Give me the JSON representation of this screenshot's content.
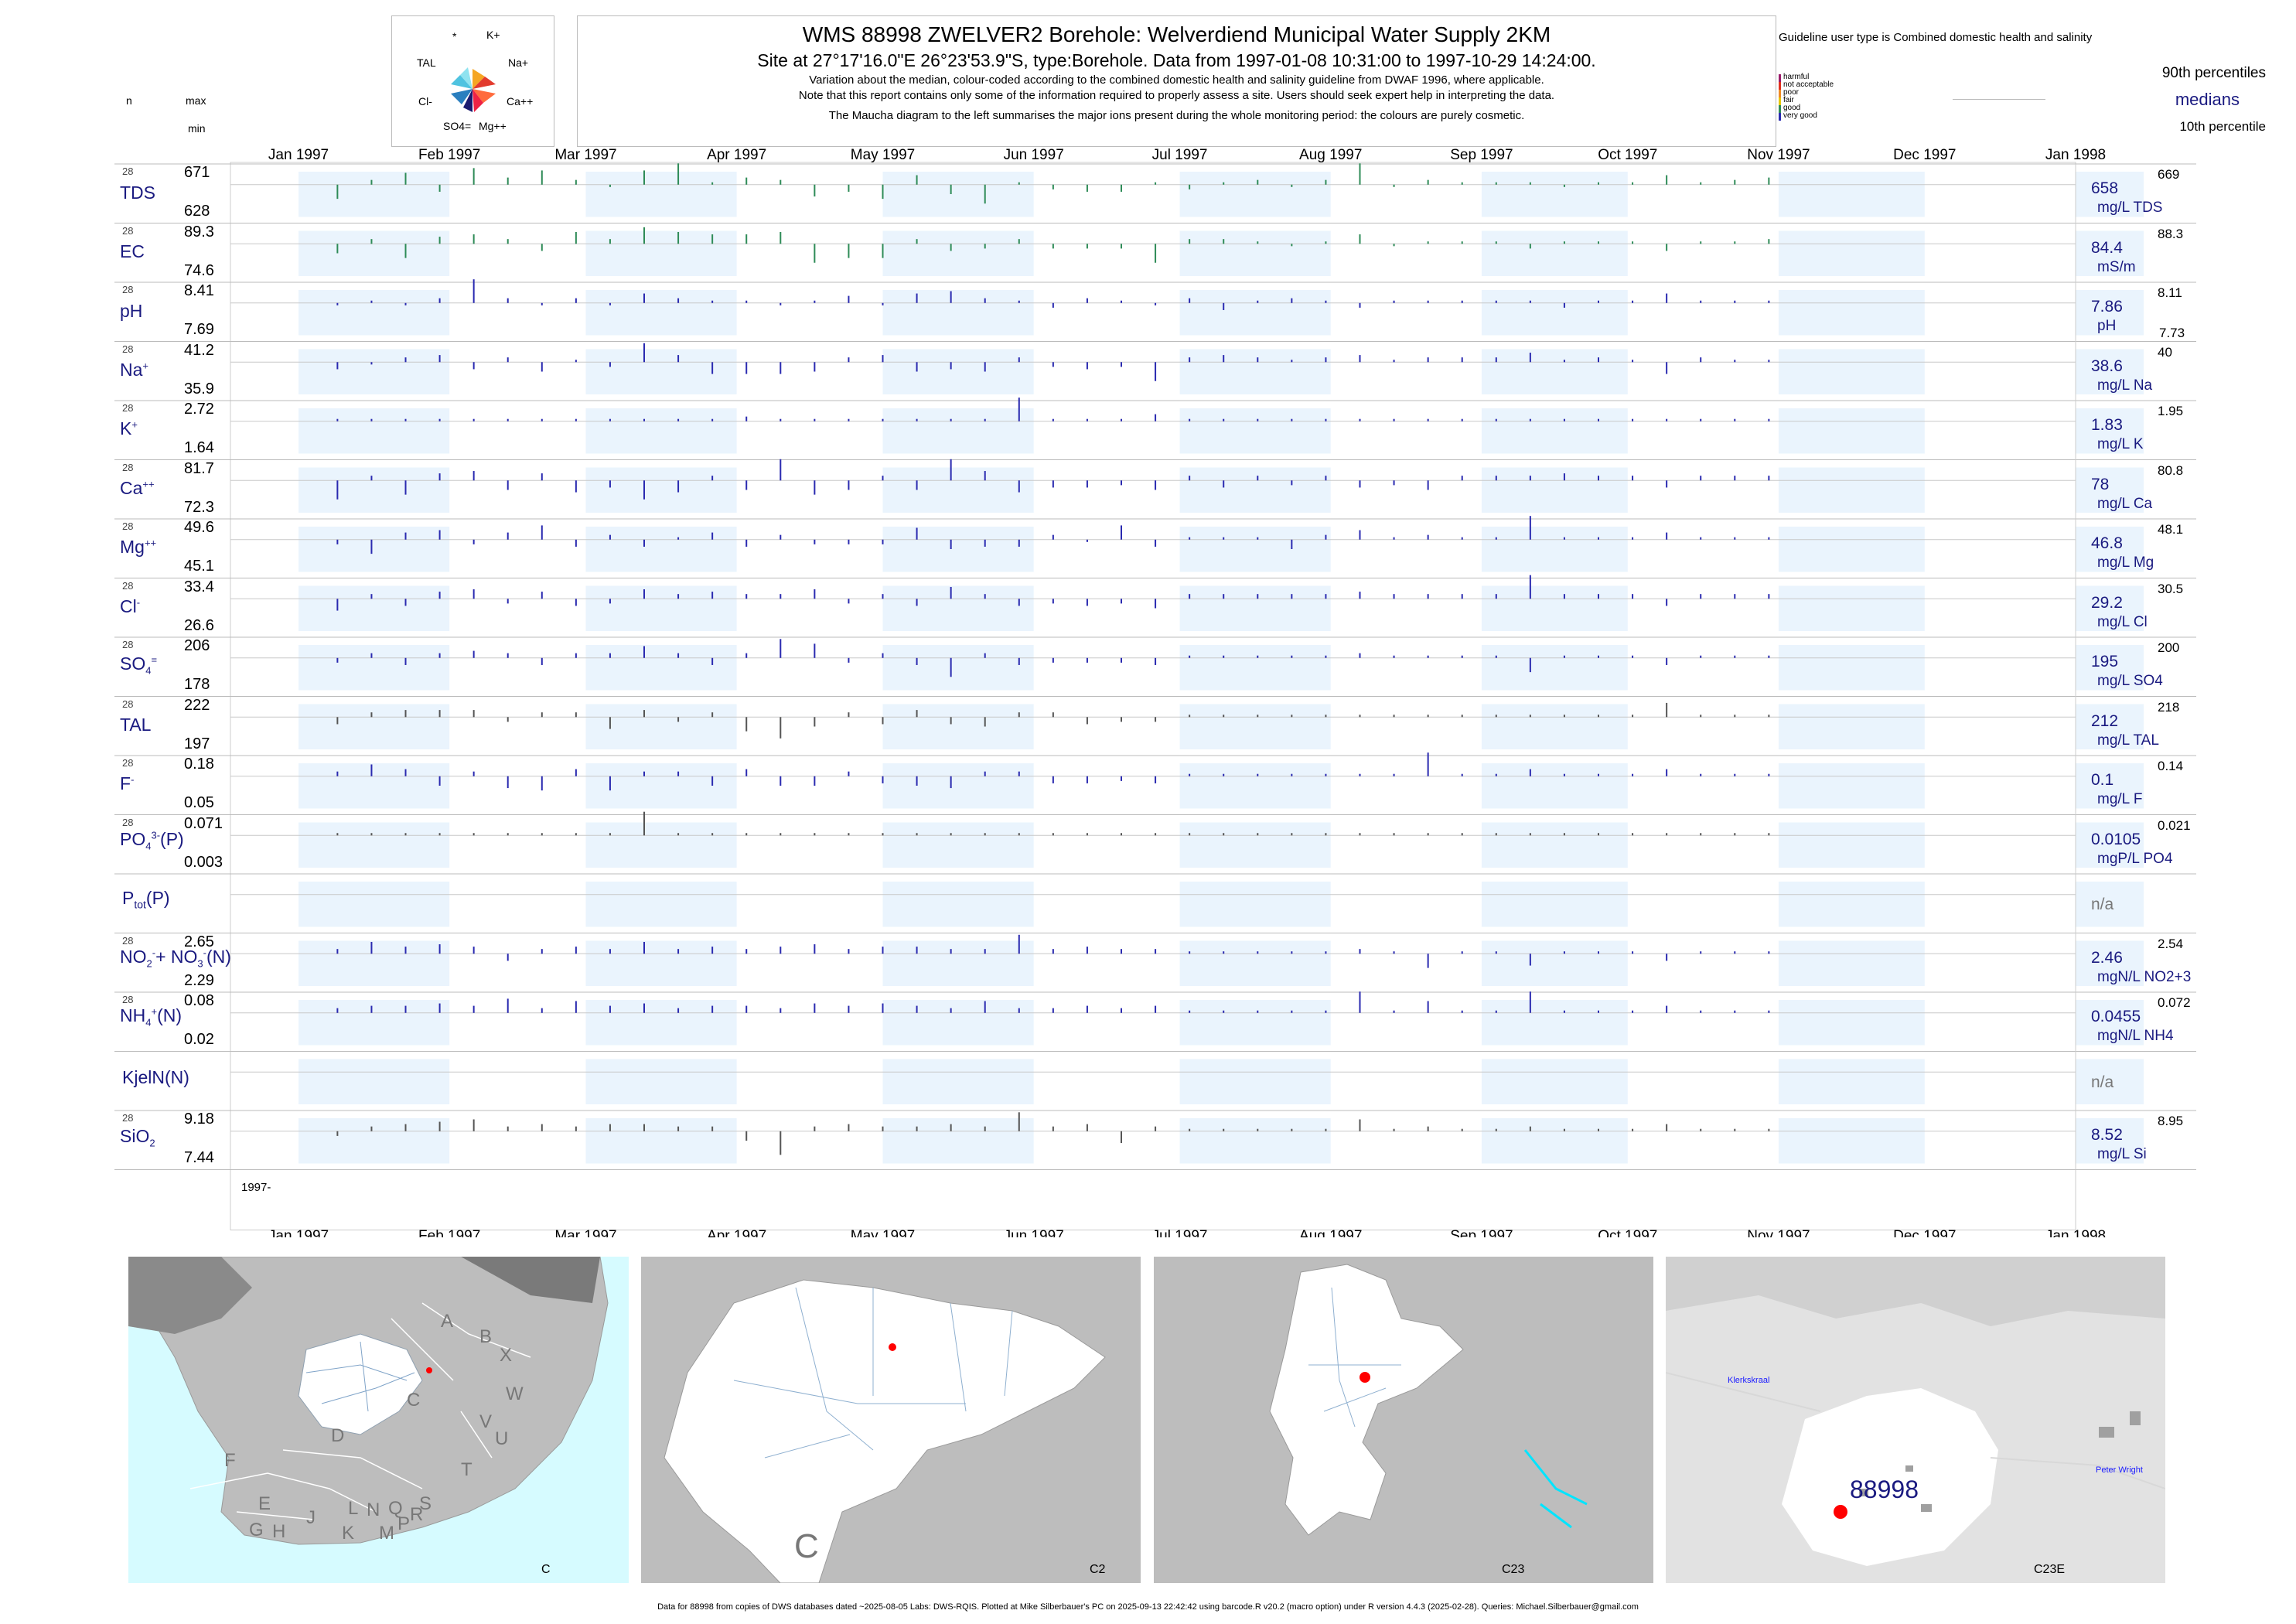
{
  "header": {
    "title": "WMS 88998  ZWELVER2 Borehole: Welverdiend Municipal Water Supply 2KM",
    "subtitle": "Site at 27°17'16.0\"E 26°23'53.9\"S, type:Borehole.  Data from 1997-01-08 10:31:00 to 1997-10-29 14:24:00.",
    "note1": "Variation about the median,  colour-coded according to the combined domestic health and salinity guideline from DWAF 1996, where applicable.",
    "note2": "Note that this report contains only some of the information required to properly assess a site. Users should seek expert help in interpreting the data.",
    "note3": "The Maucha diagram to the left summarises the major ions present during the whole monitoring period: the colours are purely cosmetic."
  },
  "maucha": {
    "labels": [
      "*",
      "K+",
      "TAL",
      "Na+",
      "Cl-",
      "Ca++",
      "SO4=",
      "Mg++"
    ]
  },
  "guideline": {
    "title": "Guideline user type is Combined domestic health and salinity",
    "categories": [
      {
        "label": "harmful",
        "color": "#9b1b6a"
      },
      {
        "label": "not acceptable",
        "color": "#e0301e"
      },
      {
        "label": "poor",
        "color": "#f08a24"
      },
      {
        "label": "fair",
        "color": "#e6c700"
      },
      {
        "label": "good",
        "color": "#2e8b57"
      },
      {
        "label": "very good",
        "color": "#2a2ab0"
      }
    ],
    "p90_label": "90th percentiles",
    "median_label": "medians",
    "p10_label": "10th percentile"
  },
  "left_header": {
    "n": "n",
    "max": "max",
    "min": "min"
  },
  "months_top": [
    "Jan 1997",
    "Feb 1997",
    "Mar 1997",
    "Apr 1997",
    "May 1997",
    "Jun 1997",
    "Jul 1997",
    "Aug 1997",
    "Sep 1997",
    "Oct 1997",
    "Nov 1997",
    "Dec 1997",
    "Jan 1998"
  ],
  "year_label": "1997-",
  "chart_data": {
    "type": "bar",
    "x_range": [
      "1997-01-01",
      "1998-01-01"
    ],
    "variables": [
      {
        "name": "TDS",
        "n": "28",
        "max": "671",
        "min": "628",
        "median": "658",
        "p90": "669",
        "unit": "mg/L TDS",
        "color": "#2e8b57"
      },
      {
        "name": "EC",
        "n": "28",
        "max": "89.3",
        "min": "74.6",
        "median": "84.4",
        "p90": "88.3",
        "unit": "mS/m",
        "color": "#2e8b57"
      },
      {
        "name": "pH",
        "n": "28",
        "max": "8.41",
        "min": "7.69",
        "median": "7.86",
        "p90": "8.11",
        "p10": "7.73",
        "unit": "pH",
        "color": "#2a2ab0"
      },
      {
        "name": "Na+",
        "n": "28",
        "max": "41.2",
        "min": "35.9",
        "median": "38.6",
        "p90": "40",
        "unit": "mg/L Na",
        "color": "#2a2ab0"
      },
      {
        "name": "K+",
        "n": "28",
        "max": "2.72",
        "min": "1.64",
        "median": "1.83",
        "p90": "1.95",
        "unit": "mg/L K",
        "color": "#2a2ab0"
      },
      {
        "name": "Ca++",
        "n": "28",
        "max": "81.7",
        "min": "72.3",
        "median": "78",
        "p90": "80.8",
        "unit": "mg/L Ca",
        "color": "#2a2ab0"
      },
      {
        "name": "Mg++",
        "n": "28",
        "max": "49.6",
        "min": "45.1",
        "median": "46.8",
        "p90": "48.1",
        "unit": "mg/L Mg",
        "color": "#2a2ab0"
      },
      {
        "name": "Cl-",
        "n": "28",
        "max": "33.4",
        "min": "26.6",
        "median": "29.2",
        "p90": "30.5",
        "unit": "mg/L Cl",
        "color": "#2a2ab0"
      },
      {
        "name": "SO4=",
        "n": "28",
        "max": "206",
        "min": "178",
        "median": "195",
        "p90": "200",
        "unit": "mg/L SO4",
        "color": "#2a2ab0"
      },
      {
        "name": "TAL",
        "n": "28",
        "max": "222",
        "min": "197",
        "median": "212",
        "p90": "218",
        "unit": "mg/L TAL",
        "color": "#555555"
      },
      {
        "name": "F-",
        "n": "28",
        "max": "0.18",
        "min": "0.05",
        "median": "0.1",
        "p90": "0.14",
        "unit": "mg/L F",
        "color": "#2a2ab0"
      },
      {
        "name": "PO4(P)",
        "n": "28",
        "max": "0.071",
        "min": "0.003",
        "median": "0.0105",
        "p90": "0.021",
        "unit": "mgP/L PO4",
        "color": "#555555"
      },
      {
        "name": "Ptot(P)",
        "n": "",
        "max": "",
        "min": "",
        "median": "n/a",
        "p90": "",
        "unit": "",
        "color": "#555555"
      },
      {
        "name": "NO2+NO3(N)",
        "n": "28",
        "max": "2.65",
        "min": "2.29",
        "median": "2.46",
        "p90": "2.54",
        "unit": "mgN/L NO2+3",
        "color": "#2a2ab0"
      },
      {
        "name": "NH4(N)",
        "n": "28",
        "max": "0.08",
        "min": "0.02",
        "median": "0.0455",
        "p90": "0.072",
        "unit": "mgN/L NH4",
        "color": "#2a2ab0"
      },
      {
        "name": "KjelN(N)",
        "n": "",
        "max": "",
        "min": "",
        "median": "n/a",
        "p90": "",
        "unit": "",
        "color": "#555555"
      },
      {
        "name": "SiO2",
        "n": "28",
        "max": "9.18",
        "min": "7.44",
        "median": "8.52",
        "p90": "8.95",
        "unit": "mg/L Si",
        "color": "#555555"
      }
    ],
    "sample_days": [
      8,
      15,
      22,
      29,
      36,
      43,
      50,
      57,
      64,
      71,
      78,
      85,
      92,
      99,
      106,
      113,
      120,
      127,
      134,
      141,
      148,
      155,
      162,
      169,
      176,
      183,
      190,
      197,
      204,
      211,
      218,
      225,
      232,
      239,
      246,
      253,
      260,
      267,
      274,
      281,
      288,
      295,
      302
    ],
    "deviations": [
      [
        -0.6,
        0.2,
        0.5,
        -0.3,
        0.7,
        0.3,
        0.6,
        0.2,
        -0.1,
        0.6,
        0.9,
        0.1,
        0.3,
        0.2,
        -0.5,
        -0.3,
        -0.6,
        0.4,
        -0.4,
        -0.8,
        0.1,
        -0.2,
        -0.3,
        -0.3,
        0.1,
        -0.2,
        0.1,
        0.2,
        -0.1,
        0.2,
        0.9,
        -0.1,
        0.2,
        0.1,
        0.1,
        0.1,
        -0.1,
        0.1,
        0.1,
        0.4,
        0.1,
        0.2,
        0.3
      ],
      [
        -0.4,
        0.2,
        -0.6,
        0.3,
        0.4,
        0.2,
        -0.3,
        0.5,
        0.2,
        0.7,
        0.5,
        0.4,
        0.4,
        0.5,
        -0.8,
        -0.6,
        -0.6,
        0.2,
        -0.3,
        -0.2,
        0.2,
        -0.2,
        -0.2,
        -0.2,
        -0.8,
        0.2,
        0.2,
        0.1,
        -0.1,
        0.1,
        0.4,
        -0.1,
        0.1,
        0.1,
        0.1,
        -0.2,
        0.1,
        0.1,
        0.1,
        -0.3,
        0.1,
        0.1,
        0.2
      ],
      [
        -0.1,
        0.1,
        -0.1,
        0.2,
        1.0,
        0.2,
        -0.1,
        0.2,
        -0.1,
        0.4,
        0.2,
        0.1,
        0.1,
        -0.1,
        0.1,
        0.3,
        -0.1,
        0.4,
        0.5,
        0.2,
        0.1,
        -0.2,
        0.2,
        0.1,
        -0.1,
        0.2,
        -0.3,
        0.1,
        0.2,
        0.1,
        -0.2,
        0.1,
        0.1,
        0.1,
        0.1,
        0.1,
        -0.2,
        0.1,
        0.1,
        0.4,
        0.1,
        0.1,
        0.1
      ],
      [
        -0.3,
        -0.1,
        0.2,
        0.3,
        -0.3,
        0.2,
        -0.4,
        0.1,
        -0.2,
        0.8,
        0.3,
        -0.5,
        -0.5,
        -0.5,
        -0.4,
        0.2,
        0.3,
        -0.4,
        -0.3,
        -0.4,
        0.2,
        -0.2,
        -0.3,
        -0.2,
        -0.8,
        0.2,
        0.3,
        0.2,
        0.1,
        0.2,
        0.3,
        0.1,
        0.2,
        0.2,
        0.2,
        0.4,
        0.1,
        0.2,
        0.1,
        -0.5,
        0.2,
        0.1,
        0.1
      ],
      [
        0.1,
        0.1,
        0.1,
        0.1,
        0.1,
        0.1,
        0.1,
        0.1,
        0.1,
        0.1,
        0.1,
        0.1,
        0.2,
        0.1,
        0.1,
        0.1,
        0.1,
        0.1,
        0.1,
        0.1,
        1.0,
        0.1,
        0.1,
        0.1,
        0.3,
        0.1,
        0.1,
        0.1,
        0.1,
        0.1,
        0.1,
        0.1,
        0.1,
        0.1,
        0.1,
        0.1,
        0.1,
        0.1,
        0.1,
        0.1,
        0.1,
        0.1,
        0.1
      ],
      [
        -0.8,
        0.2,
        -0.6,
        0.3,
        0.4,
        -0.4,
        0.3,
        -0.5,
        -0.3,
        -0.8,
        -0.5,
        0.2,
        -0.4,
        0.9,
        -0.6,
        -0.4,
        0.2,
        -0.4,
        0.9,
        0.4,
        -0.5,
        -0.3,
        -0.3,
        -0.2,
        -0.4,
        0.2,
        -0.3,
        0.2,
        -0.2,
        0.2,
        -0.3,
        -0.2,
        -0.4,
        0.2,
        0.2,
        0.2,
        0.3,
        0.2,
        0.2,
        -0.3,
        0.2,
        0.2,
        0.2
      ],
      [
        -0.2,
        -0.6,
        0.3,
        0.4,
        -0.2,
        0.3,
        0.6,
        -0.3,
        0.2,
        -0.3,
        0.1,
        0.3,
        -0.3,
        0.2,
        -0.2,
        -0.2,
        -0.2,
        0.5,
        -0.4,
        -0.3,
        -0.3,
        0.2,
        -0.1,
        0.6,
        -0.3,
        0.1,
        0.1,
        0.1,
        -0.4,
        0.2,
        0.4,
        0.1,
        0.2,
        0.1,
        0.1,
        1.0,
        0.1,
        0.1,
        0.1,
        0.3,
        0.1,
        0.1,
        0.1
      ],
      [
        -0.5,
        0.2,
        -0.3,
        0.3,
        0.4,
        -0.2,
        0.3,
        -0.3,
        -0.2,
        0.4,
        0.2,
        0.3,
        0.2,
        0.2,
        0.4,
        -0.2,
        0.2,
        -0.3,
        0.5,
        0.2,
        -0.3,
        -0.2,
        -0.3,
        -0.2,
        -0.4,
        0.2,
        0.2,
        0.2,
        0.2,
        0.2,
        0.3,
        0.2,
        0.2,
        0.2,
        0.2,
        1.0,
        0.2,
        0.2,
        0.2,
        -0.3,
        0.2,
        0.2,
        0.2
      ],
      [
        -0.2,
        0.2,
        -0.3,
        0.2,
        0.3,
        0.2,
        -0.3,
        0.2,
        0.2,
        0.5,
        0.2,
        -0.3,
        0.2,
        0.8,
        0.6,
        -0.2,
        0.2,
        -0.3,
        -0.8,
        0.2,
        -0.3,
        -0.2,
        -0.2,
        -0.2,
        -0.3,
        0.1,
        0.1,
        0.1,
        0.1,
        0.1,
        0.2,
        0.1,
        0.1,
        0.1,
        0.1,
        -0.6,
        0.1,
        0.1,
        0.1,
        -0.3,
        0.1,
        0.1,
        0.1
      ],
      [
        -0.3,
        0.2,
        0.3,
        0.3,
        0.3,
        -0.2,
        0.2,
        0.2,
        -0.5,
        0.3,
        -0.2,
        0.2,
        -0.6,
        -0.9,
        -0.4,
        0.2,
        -0.3,
        0.3,
        -0.3,
        -0.4,
        0.2,
        0.2,
        -0.3,
        -0.2,
        -0.2,
        0.1,
        0.1,
        0.1,
        0.1,
        0.1,
        0.1,
        0.1,
        0.1,
        0.1,
        0.1,
        0.1,
        0.1,
        0.1,
        0.1,
        0.6,
        0.1,
        0.1,
        0.1
      ],
      [
        0.2,
        0.5,
        0.3,
        -0.4,
        0.2,
        -0.5,
        -0.6,
        0.3,
        -0.6,
        0.2,
        0.2,
        -0.4,
        0.3,
        -0.4,
        -0.4,
        0.2,
        -0.3,
        -0.4,
        -0.5,
        0.2,
        0.2,
        -0.3,
        -0.3,
        -0.2,
        -0.3,
        0.1,
        0.1,
        0.1,
        0.1,
        0.1,
        0.1,
        0.1,
        1.0,
        0.1,
        0.1,
        0.3,
        0.1,
        0.1,
        0.1,
        0.3,
        0.1,
        0.1,
        0.1
      ],
      [
        0.1,
        0.1,
        0.1,
        0.1,
        0.1,
        0.1,
        0.1,
        0.1,
        0.1,
        1.0,
        0.1,
        0.1,
        0.1,
        0.1,
        0.1,
        0.1,
        0.1,
        0.1,
        0.1,
        0.1,
        0.1,
        0.1,
        0.1,
        0.1,
        0.1,
        0.1,
        0.1,
        0.1,
        0.1,
        0.1,
        0.1,
        0.1,
        0.1,
        0.1,
        0.1,
        0.1,
        0.1,
        0.1,
        0.1,
        0.1,
        0.1,
        0.1,
        0.1
      ],
      [],
      [
        0.2,
        0.5,
        0.3,
        0.4,
        0.3,
        -0.3,
        0.2,
        0.3,
        0.2,
        0.5,
        0.2,
        0.3,
        0.2,
        0.3,
        0.4,
        0.2,
        0.3,
        0.3,
        0.2,
        0.2,
        0.8,
        0.2,
        0.3,
        0.2,
        0.2,
        0.1,
        0.1,
        0.1,
        0.1,
        0.1,
        0.2,
        0.1,
        -0.6,
        0.1,
        0.1,
        -0.5,
        0.1,
        0.1,
        0.1,
        -0.3,
        0.1,
        0.1,
        0.1
      ],
      [
        0.2,
        0.3,
        0.3,
        0.4,
        0.3,
        0.6,
        0.2,
        0.5,
        0.3,
        0.4,
        0.2,
        0.3,
        0.3,
        0.2,
        0.4,
        0.3,
        0.4,
        0.3,
        0.2,
        0.5,
        0.2,
        0.2,
        0.3,
        0.2,
        0.3,
        0.1,
        0.1,
        0.1,
        0.1,
        0.1,
        0.9,
        0.1,
        0.5,
        0.1,
        0.1,
        0.9,
        0.1,
        0.1,
        0.1,
        0.3,
        0.1,
        0.1,
        0.1
      ],
      [],
      [
        -0.2,
        0.2,
        0.3,
        0.4,
        0.5,
        0.2,
        0.3,
        0.2,
        0.3,
        0.3,
        0.2,
        0.2,
        -0.4,
        -1.0,
        0.2,
        0.3,
        0.2,
        0.2,
        0.3,
        0.2,
        0.8,
        0.2,
        0.3,
        -0.5,
        0.2,
        0.1,
        0.1,
        0.1,
        0.1,
        0.1,
        0.5,
        0.1,
        0.2,
        0.1,
        0.1,
        0.2,
        0.1,
        0.1,
        0.1,
        0.3,
        0.1,
        0.1,
        0.1
      ]
    ]
  },
  "maps": [
    {
      "label": "C",
      "letters": [
        "A",
        "B",
        "X",
        "W",
        "C",
        "V",
        "U",
        "T",
        "D",
        "F",
        "E",
        "G",
        "H",
        "J",
        "K",
        "L",
        "M",
        "N",
        "P",
        "Q",
        "R",
        "S"
      ]
    },
    {
      "label": "C2",
      "big_letter": "C"
    },
    {
      "label": "C23"
    },
    {
      "label": "C23E",
      "site": "88998",
      "towns": [
        "Klerkskraal",
        "Peter Wright"
      ]
    }
  ],
  "footer": "Data for 88998 from copies of DWS databases dated ~2025-08-05 Labs: DWS-RQIS. Plotted at Mike Silberbauer's PC on 2025-09-13 22:42:42 using barcode.R v20.2 (macro option) under R version 4.4.3 (2025-02-28). Queries: Michael.Silberbauer@gmail.com"
}
